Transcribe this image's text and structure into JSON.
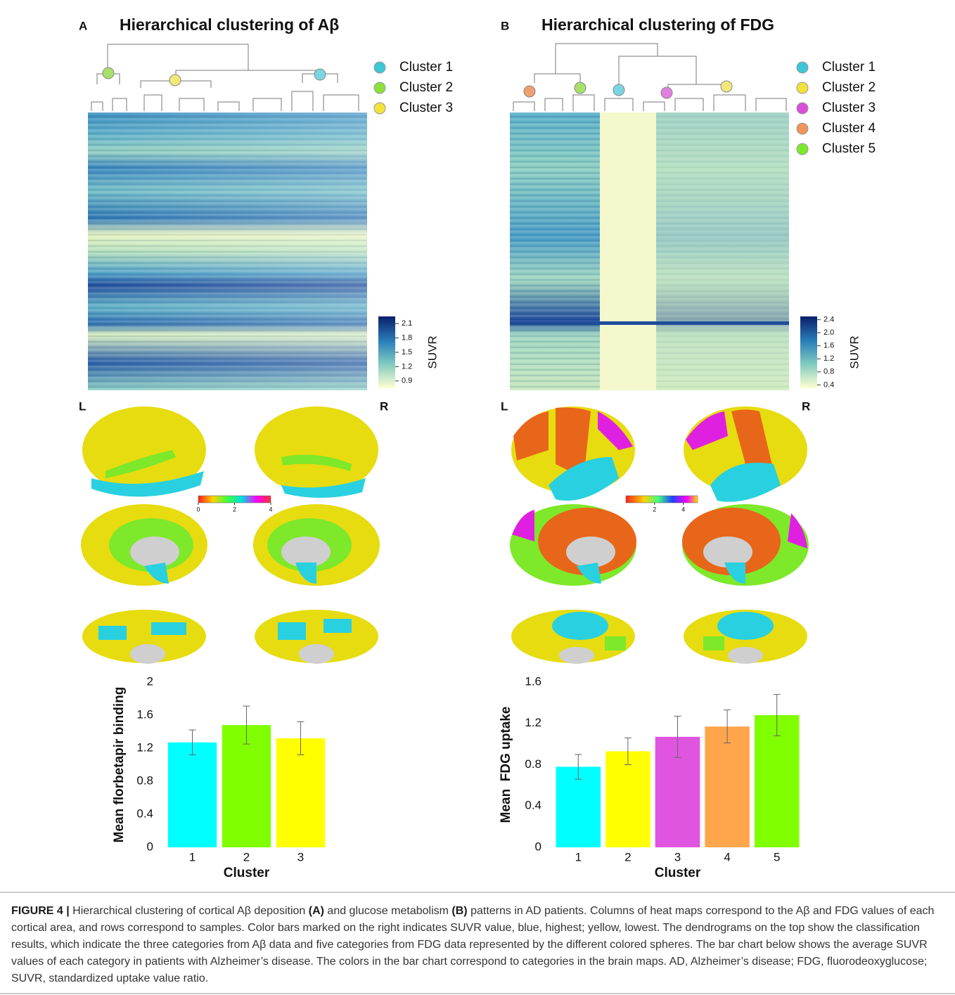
{
  "panels": [
    {
      "letter": "A",
      "title": "Hierarchical clustering of Aβ",
      "legend": [
        {
          "name": "Cluster 1",
          "color": "#3cc6d6"
        },
        {
          "name": "Cluster 2",
          "color": "#8ce03a"
        },
        {
          "name": "Cluster 3",
          "color": "#f2e23a"
        }
      ],
      "colorbar": {
        "label": "SUVR",
        "lim": [
          0.75,
          2.25
        ],
        "ticks": [
          0.9,
          1.2,
          1.5,
          1.8,
          2.1
        ]
      },
      "hemispheres": [
        "L",
        "R"
      ],
      "brain_colorbar": {
        "lim": [
          0,
          4
        ],
        "ticks": [
          0,
          2,
          4
        ]
      }
    },
    {
      "letter": "B",
      "title": "Hierarchical clustering of FDG",
      "legend": [
        {
          "name": "Cluster 1",
          "color": "#3cc6d6"
        },
        {
          "name": "Cluster 2",
          "color": "#f2e23a"
        },
        {
          "name": "Cluster 3",
          "color": "#d94fd9"
        },
        {
          "name": "Cluster 4",
          "color": "#f0955a"
        },
        {
          "name": "Cluster 5",
          "color": "#7ee82a"
        }
      ],
      "colorbar": {
        "label": "SUVR",
        "lim": [
          0.3,
          2.5
        ],
        "ticks": [
          0.4,
          0.8,
          1.2,
          1.6,
          {
            "value": 2,
            "label": "2.0"
          },
          2.4
        ]
      },
      "hemispheres": [
        "L",
        "R"
      ],
      "brain_colorbar": {
        "lim": [
          0,
          5
        ],
        "ticks": [
          2,
          4
        ]
      }
    }
  ],
  "chart_data": [
    {
      "type": "bar",
      "x_label": "Cluster",
      "y_label": "Mean florbetapir binding",
      "categories": [
        "1",
        "2",
        "3"
      ],
      "values": [
        1.27,
        1.48,
        1.32
      ],
      "errors": [
        0.15,
        0.23,
        0.2
      ],
      "colors": [
        "#00ffff",
        "#80ff00",
        "#ffff00"
      ],
      "ylim": [
        0,
        2
      ],
      "yticks": [
        0,
        0.4,
        0.8,
        1.2,
        1.6,
        2
      ]
    },
    {
      "type": "bar",
      "x_label": "Cluster",
      "y_label": "Mean  FDG uptake",
      "categories": [
        "1",
        "2",
        "3",
        "4",
        "5"
      ],
      "values": [
        0.78,
        0.93,
        1.07,
        1.17,
        1.28
      ],
      "errors": [
        0.12,
        0.13,
        0.2,
        0.16,
        0.2
      ],
      "colors": [
        "#00ffff",
        "#ffff00",
        "#e055e0",
        "#ffa64d",
        "#80ff00"
      ],
      "ylim": [
        0,
        1.6
      ],
      "yticks": [
        0,
        0.4,
        0.8,
        1.2,
        1.6
      ]
    }
  ],
  "caption": {
    "label": "FIGURE 4 |",
    "parts": [
      "Hierarchical clustering of cortical Aβ deposition ",
      "(A)",
      " and glucose metabolism ",
      "(B)",
      " patterns in AD patients. Columns of heat maps correspond to the Aβ and FDG values of each cortical area, and rows correspond to samples. Color bars marked on the right indicates SUVR value, blue, highest; yellow, lowest. The dendrograms on the top show the classification results, which indicate the three categories from Aβ data and five categories from FDG data represented by the different colored spheres. The bar chart below shows the average SUVR values of each category in patients with Alzheimer’s disease. The colors in the bar chart correspond to categories in the brain maps. AD, Alzheimer’s disease; FDG, fluorodeoxyglucose; SUVR, standardized uptake value ratio."
    ]
  }
}
